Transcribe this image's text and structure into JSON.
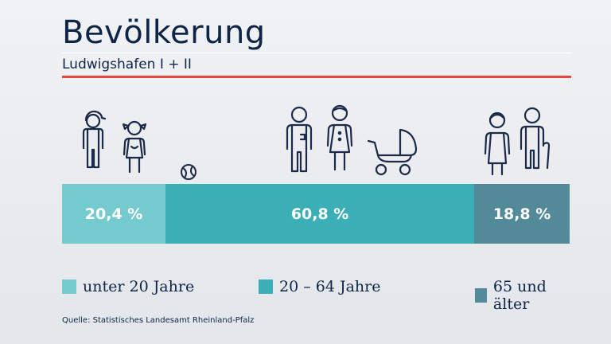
{
  "header": {
    "title": "Bevölkerung",
    "subtitle": "Ludwigshafen I + II"
  },
  "chart_data": {
    "type": "bar",
    "orientation": "horizontal-stacked",
    "title": "Bevölkerung",
    "subtitle": "Ludwigshafen I + II",
    "unit": "%",
    "series": [
      {
        "name": "unter 20 Jahre",
        "value": 20.4,
        "label": "20,4 %",
        "color": "#75cacd"
      },
      {
        "name": "20 – 64 Jahre",
        "value": 60.8,
        "label": "60,8 %",
        "color": "#3aafb5"
      },
      {
        "name": "65 und älter",
        "value": 18.8,
        "label": "18,8 %",
        "color": "#528a99"
      }
    ],
    "legend_position": "bottom"
  },
  "icons": [
    "boy-icon",
    "girl-icon",
    "ball-icon",
    "man-icon",
    "woman-icon",
    "stroller-icon",
    "old-woman-icon",
    "old-man-icon"
  ],
  "colors": {
    "accent_red": "#e8473f",
    "text_navy": "#0e2548",
    "icon_navy": "#1b2a48"
  },
  "source": "Quelle: Statistisches Landesamt Rheinland-Pfalz"
}
